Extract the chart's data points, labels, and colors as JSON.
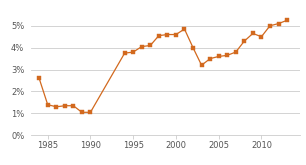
{
  "years": [
    1984,
    1985,
    1986,
    1987,
    1988,
    1989,
    1990,
    1994,
    1995,
    1996,
    1997,
    1998,
    1999,
    2000,
    2001,
    2002,
    2003,
    2004,
    2005,
    2006,
    2007,
    2008,
    2009,
    2010,
    2011,
    2012,
    2013
  ],
  "values": [
    2.6,
    1.4,
    1.3,
    1.35,
    1.35,
    1.05,
    1.05,
    3.75,
    3.8,
    4.05,
    4.1,
    4.55,
    4.6,
    4.6,
    4.85,
    4.0,
    3.2,
    3.5,
    3.6,
    3.65,
    3.8,
    4.3,
    4.65,
    4.5,
    5.0,
    5.1,
    5.25
  ],
  "line_color": "#d2691e",
  "marker_color": "#d2691e",
  "bg_color": "#ffffff",
  "grid_color": "#cccccc",
  "tick_color": "#555555",
  "xlim": [
    1983,
    2014.5
  ],
  "ylim": [
    0,
    5.8
  ],
  "yticks": [
    0,
    1,
    2,
    3,
    4,
    5
  ],
  "xticks": [
    1985,
    1990,
    1995,
    2000,
    2005,
    2010
  ]
}
